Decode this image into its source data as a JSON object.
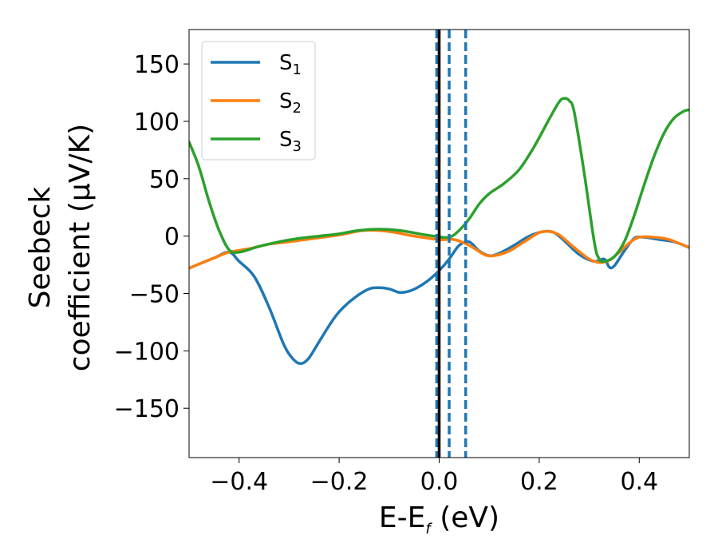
{
  "chart_data": {
    "type": "line",
    "xlabel_main": "E-E",
    "xlabel_sub": "f",
    "xlabel_unit": " (eV)",
    "ylabel_line1": "Seebeck",
    "ylabel_line2": "coefficient  (μV/K)",
    "xlim": [
      -0.5,
      0.5
    ],
    "ylim": [
      -193,
      180
    ],
    "x_ticks": [
      {
        "value": -0.4,
        "label": "−0.4"
      },
      {
        "value": -0.2,
        "label": "−0.2"
      },
      {
        "value": 0.0,
        "label": "0.0"
      },
      {
        "value": 0.2,
        "label": "0.2"
      },
      {
        "value": 0.4,
        "label": "0.4"
      }
    ],
    "y_ticks": [
      {
        "value": 150,
        "label": "150"
      },
      {
        "value": 100,
        "label": "100"
      },
      {
        "value": 50,
        "label": "50"
      },
      {
        "value": 0,
        "label": "0"
      },
      {
        "value": -50,
        "label": "−50"
      },
      {
        "value": -100,
        "label": "−100"
      },
      {
        "value": -150,
        "label": "−150"
      }
    ],
    "grid": false,
    "legend_position": "top-left",
    "series": [
      {
        "name_main": "S",
        "name_sub": "1",
        "color": "#1f77b4",
        "points": [
          [
            -0.5,
            -28
          ],
          [
            -0.45,
            -19
          ],
          [
            -0.42,
            -14
          ],
          [
            -0.4,
            -22
          ],
          [
            -0.37,
            -35
          ],
          [
            -0.34,
            -62
          ],
          [
            -0.31,
            -95
          ],
          [
            -0.29,
            -108
          ],
          [
            -0.275,
            -111
          ],
          [
            -0.26,
            -106
          ],
          [
            -0.24,
            -92
          ],
          [
            -0.22,
            -78
          ],
          [
            -0.2,
            -66
          ],
          [
            -0.17,
            -54
          ],
          [
            -0.14,
            -46
          ],
          [
            -0.12,
            -45
          ],
          [
            -0.1,
            -46
          ],
          [
            -0.08,
            -49
          ],
          [
            -0.06,
            -48
          ],
          [
            -0.04,
            -44
          ],
          [
            -0.02,
            -38
          ],
          [
            0.0,
            -30
          ],
          [
            0.02,
            -20
          ],
          [
            0.04,
            -8
          ],
          [
            0.06,
            -5
          ],
          [
            0.08,
            -13
          ],
          [
            0.1,
            -17
          ],
          [
            0.12,
            -15
          ],
          [
            0.15,
            -8
          ],
          [
            0.18,
            0
          ],
          [
            0.21,
            4
          ],
          [
            0.23,
            3
          ],
          [
            0.25,
            -4
          ],
          [
            0.28,
            -16
          ],
          [
            0.31,
            -22
          ],
          [
            0.33,
            -20
          ],
          [
            0.34,
            -27
          ],
          [
            0.35,
            -26
          ],
          [
            0.37,
            -13
          ],
          [
            0.39,
            -2
          ],
          [
            0.41,
            -1
          ],
          [
            0.44,
            -3
          ],
          [
            0.47,
            -5
          ],
          [
            0.5,
            -10
          ]
        ]
      },
      {
        "name_main": "S",
        "name_sub": "2",
        "color": "#ff7f0e",
        "points": [
          [
            -0.5,
            -28
          ],
          [
            -0.45,
            -19
          ],
          [
            -0.42,
            -14
          ],
          [
            -0.38,
            -11
          ],
          [
            -0.34,
            -7
          ],
          [
            -0.3,
            -5
          ],
          [
            -0.25,
            -2
          ],
          [
            -0.2,
            1
          ],
          [
            -0.15,
            5
          ],
          [
            -0.1,
            4
          ],
          [
            -0.05,
            0
          ],
          [
            0.0,
            -3
          ],
          [
            0.03,
            -3
          ],
          [
            0.06,
            -8
          ],
          [
            0.09,
            -16
          ],
          [
            0.11,
            -17
          ],
          [
            0.14,
            -13
          ],
          [
            0.17,
            -5
          ],
          [
            0.2,
            3
          ],
          [
            0.22,
            4
          ],
          [
            0.24,
            1
          ],
          [
            0.27,
            -10
          ],
          [
            0.3,
            -20
          ],
          [
            0.32,
            -23
          ],
          [
            0.34,
            -21
          ],
          [
            0.36,
            -14
          ],
          [
            0.38,
            -6
          ],
          [
            0.4,
            -1
          ],
          [
            0.43,
            -1
          ],
          [
            0.46,
            -3
          ],
          [
            0.5,
            -10
          ]
        ]
      },
      {
        "name_main": "S",
        "name_sub": "3",
        "color": "#2ca02c",
        "points": [
          [
            -0.5,
            82
          ],
          [
            -0.48,
            60
          ],
          [
            -0.46,
            30
          ],
          [
            -0.44,
            5
          ],
          [
            -0.42,
            -12
          ],
          [
            -0.4,
            -14
          ],
          [
            -0.36,
            -9
          ],
          [
            -0.32,
            -5
          ],
          [
            -0.28,
            -2
          ],
          [
            -0.24,
            0
          ],
          [
            -0.2,
            2
          ],
          [
            -0.16,
            5
          ],
          [
            -0.12,
            6
          ],
          [
            -0.08,
            5
          ],
          [
            -0.04,
            2
          ],
          [
            -0.01,
            0
          ],
          [
            0.02,
            -1
          ],
          [
            0.04,
            5
          ],
          [
            0.06,
            15
          ],
          [
            0.08,
            28
          ],
          [
            0.1,
            37
          ],
          [
            0.13,
            46
          ],
          [
            0.16,
            58
          ],
          [
            0.19,
            78
          ],
          [
            0.22,
            102
          ],
          [
            0.24,
            117
          ],
          [
            0.25,
            120
          ],
          [
            0.26,
            118
          ],
          [
            0.27,
            108
          ],
          [
            0.29,
            55
          ],
          [
            0.31,
            -5
          ],
          [
            0.32,
            -20
          ],
          [
            0.33,
            -22
          ],
          [
            0.35,
            -18
          ],
          [
            0.37,
            -5
          ],
          [
            0.39,
            18
          ],
          [
            0.41,
            45
          ],
          [
            0.43,
            70
          ],
          [
            0.45,
            90
          ],
          [
            0.47,
            103
          ],
          [
            0.49,
            109
          ],
          [
            0.5,
            110
          ]
        ]
      }
    ],
    "solid_vline": {
      "x": 0.0,
      "color": "#000000"
    },
    "dashed_vlines": [
      {
        "x": -0.005
      },
      {
        "x": 0.02
      },
      {
        "x": 0.053
      }
    ],
    "dashed_color": "#1f77b4"
  }
}
